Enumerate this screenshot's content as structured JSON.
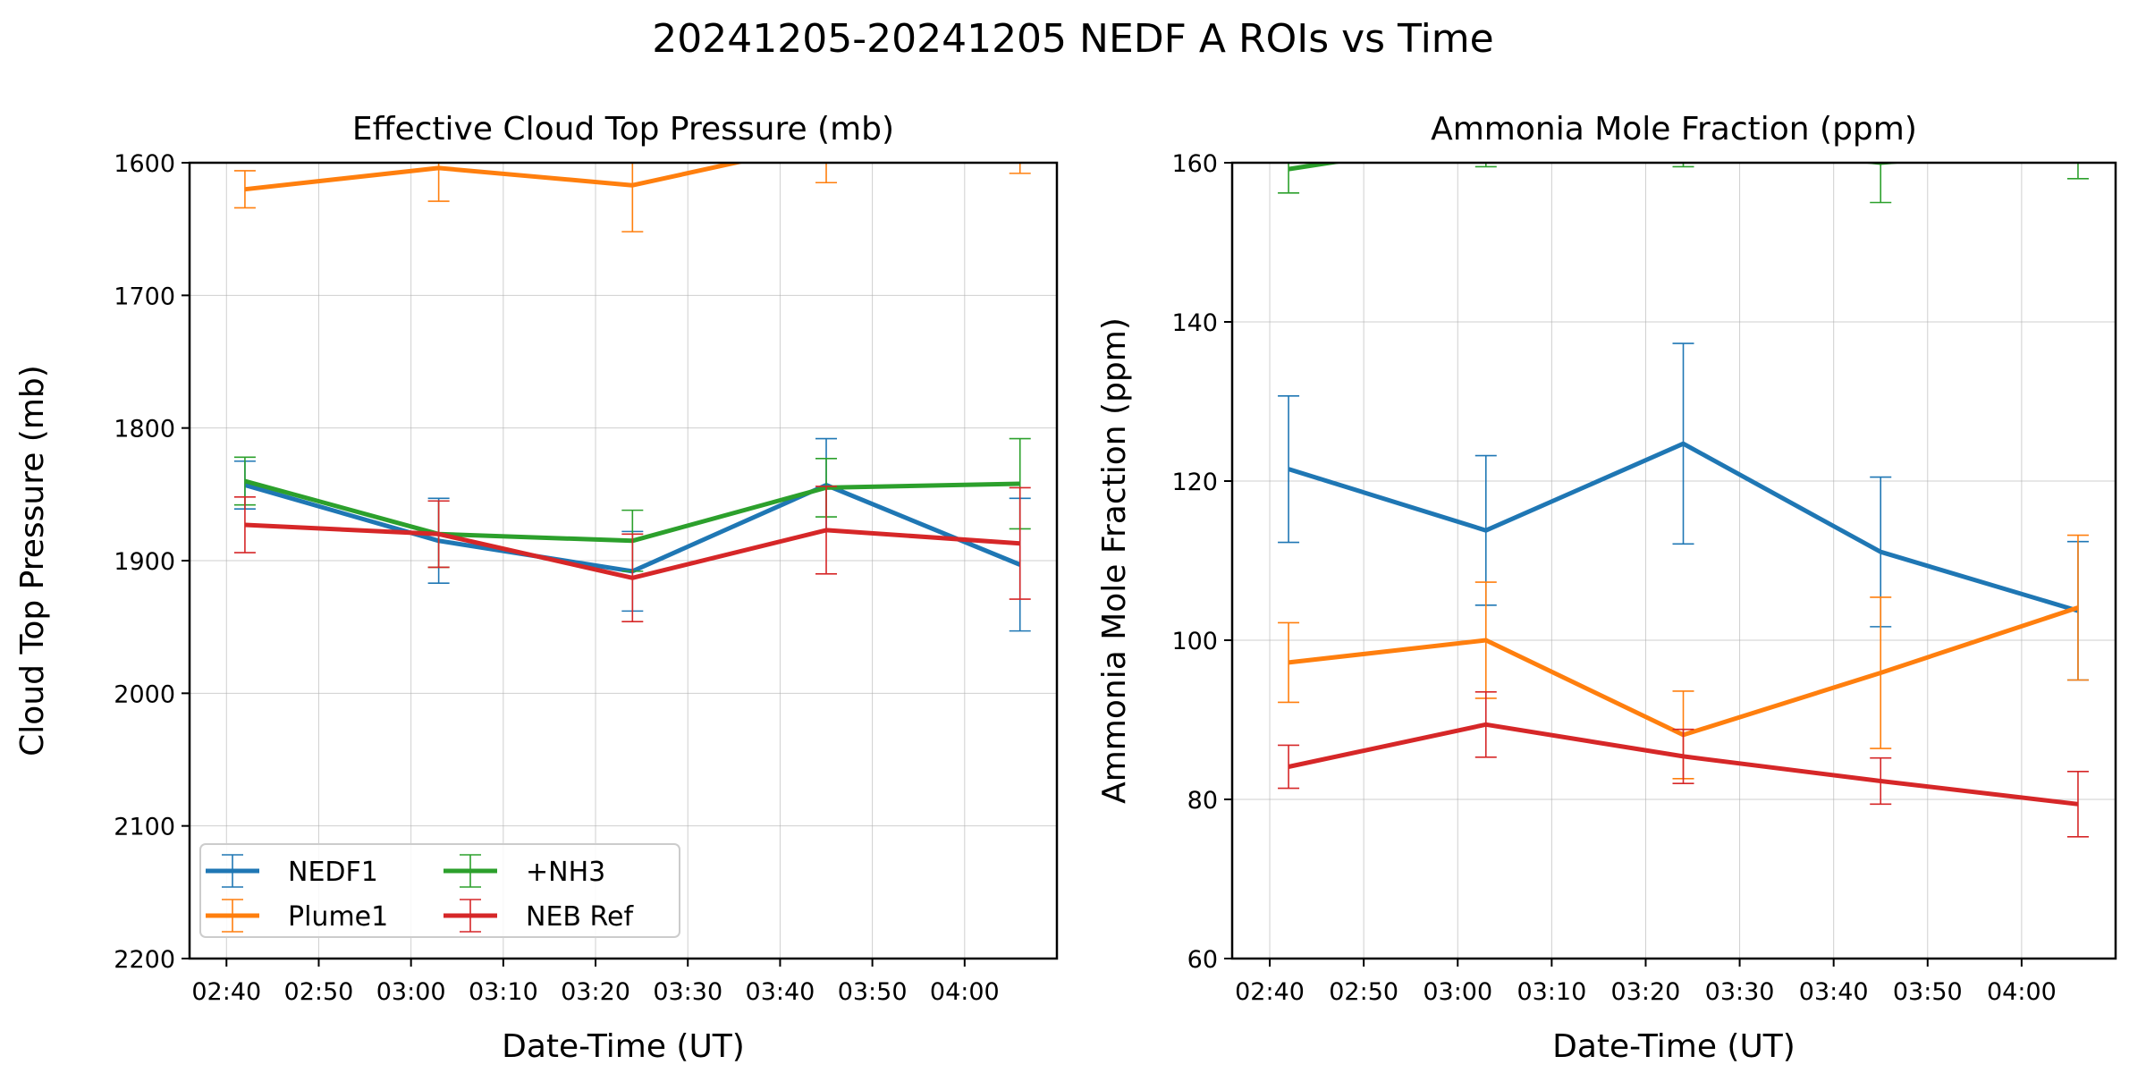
{
  "title": "20241205-20241205 NEDF A ROIs vs Time",
  "chart_data": [
    {
      "type": "line",
      "title": "Effective Cloud Top Pressure (mb)",
      "xlabel": "Date-Time (UT)",
      "ylabel": "Cloud Top Pressure (mb)",
      "x_ticks": [
        "02:40",
        "02:50",
        "03:00",
        "03:10",
        "03:20",
        "03:30",
        "03:40",
        "03:50",
        "04:00"
      ],
      "x": [
        "02:42",
        "03:03",
        "03:24",
        "03:45",
        "04:06"
      ],
      "y_ticks": [
        1600,
        1700,
        1800,
        1900,
        2000,
        2100,
        2200
      ],
      "ylim": [
        2200,
        1600
      ],
      "y_inverted": true,
      "grid": true,
      "legend": {
        "position": "lower-left",
        "columns": 2
      },
      "series": [
        {
          "name": "NEDF1",
          "color": "#1f77b4",
          "values": [
            1843,
            1885,
            1908,
            1843,
            1903
          ],
          "errors": [
            18,
            32,
            30,
            35,
            50
          ]
        },
        {
          "name": "Plume1",
          "color": "#ff7f0e",
          "values": [
            1620,
            1604,
            1617,
            1585,
            1580
          ],
          "errors": [
            14,
            25,
            35,
            30,
            28
          ]
        },
        {
          "name": "+NH3",
          "color": "#2ca02c",
          "values": [
            1840,
            1880,
            1885,
            1845,
            1842
          ],
          "errors": [
            18,
            25,
            23,
            22,
            34
          ]
        },
        {
          "name": "NEB Ref",
          "color": "#d62728",
          "values": [
            1873,
            1880,
            1913,
            1877,
            1887
          ],
          "errors": [
            21,
            25,
            33,
            33,
            42
          ]
        }
      ]
    },
    {
      "type": "line",
      "title": "Ammonia Mole Fraction (ppm)",
      "xlabel": "Date-Time (UT)",
      "ylabel": "Ammonia Mole Fraction (ppm)",
      "x_ticks": [
        "02:40",
        "02:50",
        "03:00",
        "03:10",
        "03:20",
        "03:30",
        "03:40",
        "03:50",
        "04:00"
      ],
      "x": [
        "02:42",
        "03:03",
        "03:24",
        "03:45",
        "04:06"
      ],
      "y_ticks": [
        60,
        80,
        100,
        120,
        140,
        160
      ],
      "ylim": [
        60,
        160
      ],
      "grid": true,
      "series": [
        {
          "name": "NEDF1",
          "color": "#1f77b4",
          "values": [
            121.5,
            113.8,
            124.7,
            111.1,
            103.7
          ],
          "errors": [
            9.2,
            9.4,
            12.6,
            9.4,
            8.7
          ]
        },
        {
          "name": "Plume1",
          "color": "#ff7f0e",
          "values": [
            97.2,
            100.0,
            88.1,
            95.9,
            104.1
          ],
          "errors": [
            5.0,
            7.3,
            5.5,
            9.5,
            9.1
          ]
        },
        {
          "name": "+NH3",
          "color": "#2ca02c",
          "values": [
            159.2,
            163.0,
            162.5,
            160.0,
            162.0
          ],
          "errors": [
            3.0,
            3.5,
            3.0,
            5.0,
            4.0
          ]
        },
        {
          "name": "NEB Ref",
          "color": "#d62728",
          "values": [
            84.1,
            89.4,
            85.4,
            82.3,
            79.4
          ],
          "errors": [
            2.7,
            4.1,
            3.4,
            2.9,
            4.1
          ]
        }
      ]
    }
  ]
}
